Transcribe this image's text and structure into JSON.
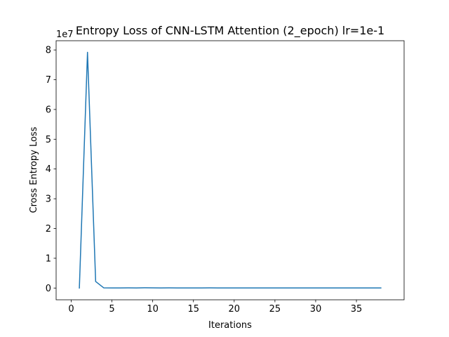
{
  "chart_data": {
    "type": "line",
    "title": "Entropy Loss of CNN-LSTM Attention (2_epoch) lr=1e-1",
    "xlabel": "Iterations",
    "ylabel": "Cross Entropy Loss",
    "offset_text": "1e7",
    "xlim": [
      -1.85,
      40.85
    ],
    "ylim": [
      -0.395,
      8.31
    ],
    "xticks": [
      0,
      5,
      10,
      15,
      20,
      25,
      30,
      35
    ],
    "yticks": [
      0,
      1,
      2,
      3,
      4,
      5,
      6,
      7,
      8
    ],
    "grid": false,
    "line_color": "#1f77b4",
    "series": [
      {
        "x": [
          1,
          2,
          3,
          4,
          5,
          6,
          7,
          8,
          9,
          10,
          11,
          12,
          13,
          14,
          15,
          16,
          17,
          18,
          19,
          20,
          21,
          22,
          23,
          24,
          25,
          26,
          27,
          28,
          29,
          30,
          31,
          32,
          33,
          34,
          35,
          36,
          37,
          38
        ],
        "y": [
          0.0,
          7.92,
          0.22,
          0.005,
          0.004,
          0.004,
          0.005,
          0.004,
          0.008,
          0.006,
          0.004,
          0.005,
          0.004,
          0.004,
          0.004,
          0.004,
          0.006,
          0.003,
          0.004,
          0.004,
          0.004,
          0.004,
          0.004,
          0.004,
          0.004,
          0.004,
          0.004,
          0.004,
          0.004,
          0.004,
          0.004,
          0.004,
          0.004,
          0.004,
          0.004,
          0.004,
          0.004,
          0.004
        ]
      }
    ]
  }
}
